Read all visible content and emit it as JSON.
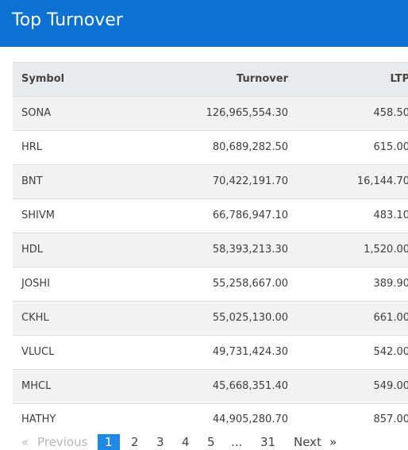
{
  "header": {
    "title": "Top Turnover"
  },
  "table": {
    "columns": [
      "Symbol",
      "Turnover",
      "LTP"
    ],
    "rows": [
      {
        "symbol": "SONA",
        "turnover": "126,965,554.30",
        "ltp": "458.50"
      },
      {
        "symbol": "HRL",
        "turnover": "80,689,282.50",
        "ltp": "615.00"
      },
      {
        "symbol": "BNT",
        "turnover": "70,422,191.70",
        "ltp": "16,144.70"
      },
      {
        "symbol": "SHIVM",
        "turnover": "66,786,947.10",
        "ltp": "483.10"
      },
      {
        "symbol": "HDL",
        "turnover": "58,393,213.30",
        "ltp": "1,520.00"
      },
      {
        "symbol": "JOSHI",
        "turnover": "55,258,667.00",
        "ltp": "389.90"
      },
      {
        "symbol": "CKHL",
        "turnover": "55,025,130.00",
        "ltp": "661.00"
      },
      {
        "symbol": "VLUCL",
        "turnover": "49,731,424.30",
        "ltp": "542.00"
      },
      {
        "symbol": "MHCL",
        "turnover": "45,668,351.40",
        "ltp": "549.00"
      },
      {
        "symbol": "HATHY",
        "turnover": "44,905,280.70",
        "ltp": "857.00"
      }
    ]
  },
  "pagination": {
    "prev_arrow": "«",
    "prev": "Previous",
    "pages": [
      "1",
      "2",
      "3",
      "4",
      "5"
    ],
    "ellipsis": "...",
    "last": "31",
    "next": "Next",
    "next_arrow": "»",
    "active": "1"
  },
  "colors": {
    "header": "#0b72d2",
    "active_page": "#1e88e5",
    "row_alt": "#f2f2f2",
    "thead": "#e9eaeb"
  }
}
